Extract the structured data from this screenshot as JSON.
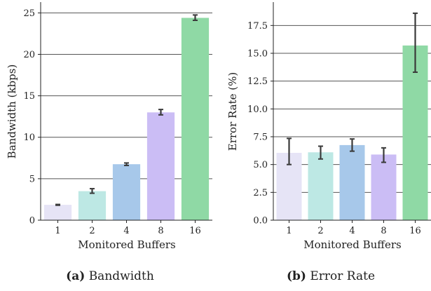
{
  "chart_data": [
    {
      "type": "bar",
      "panel_label": "(a)",
      "panel_title": "Bandwidth",
      "categories": [
        "1",
        "2",
        "4",
        "8",
        "16"
      ],
      "values": [
        1.85,
        3.5,
        6.75,
        13.0,
        24.4
      ],
      "error_low": [
        1.8,
        3.25,
        6.6,
        12.7,
        24.1
      ],
      "error_high": [
        1.9,
        3.8,
        6.9,
        13.35,
        24.75
      ],
      "colors": [
        "#e6e4f6",
        "#bde8e4",
        "#a7c8ea",
        "#cbbdf5",
        "#8fd9a5"
      ],
      "xlabel": "Monitored Buffers",
      "ylabel": "Bandwidth (kbps)",
      "ylim": [
        0,
        26.3
      ],
      "yticks": [
        0,
        5,
        10,
        15,
        20,
        25
      ],
      "ytick_labels": [
        "0",
        "5",
        "10",
        "15",
        "20",
        "25"
      ],
      "grid": "horizontal"
    },
    {
      "type": "bar",
      "panel_label": "(b)",
      "panel_title": "Error Rate",
      "categories": [
        "1",
        "2",
        "4",
        "8",
        "16"
      ],
      "values": [
        6.05,
        6.1,
        6.75,
        5.9,
        15.7
      ],
      "error_low": [
        5.0,
        5.5,
        6.2,
        5.2,
        13.3
      ],
      "error_high": [
        7.35,
        6.65,
        7.3,
        6.5,
        18.6
      ],
      "colors": [
        "#e6e4f6",
        "#bde8e4",
        "#a7c8ea",
        "#cbbdf5",
        "#8fd9a5"
      ],
      "xlabel": "Monitored Buffers",
      "ylabel": "Error Rate (%)",
      "ylim": [
        0,
        19.6
      ],
      "yticks": [
        0,
        2.5,
        5,
        7.5,
        10,
        12.5,
        15,
        17.5
      ],
      "ytick_labels": [
        "0.0",
        "2.5",
        "5.0",
        "7.5",
        "10.0",
        "12.5",
        "15.0",
        "17.5"
      ],
      "grid": "horizontal"
    }
  ]
}
